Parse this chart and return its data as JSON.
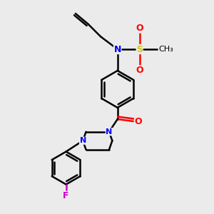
{
  "bg_color": "#ebebeb",
  "bond_color": "#000000",
  "atom_colors": {
    "N": "#0000ff",
    "O": "#ff0000",
    "S": "#cccc00",
    "F": "#cc00cc",
    "C": "#000000"
  },
  "figsize": [
    3.0,
    3.0
  ],
  "dpi": 100
}
